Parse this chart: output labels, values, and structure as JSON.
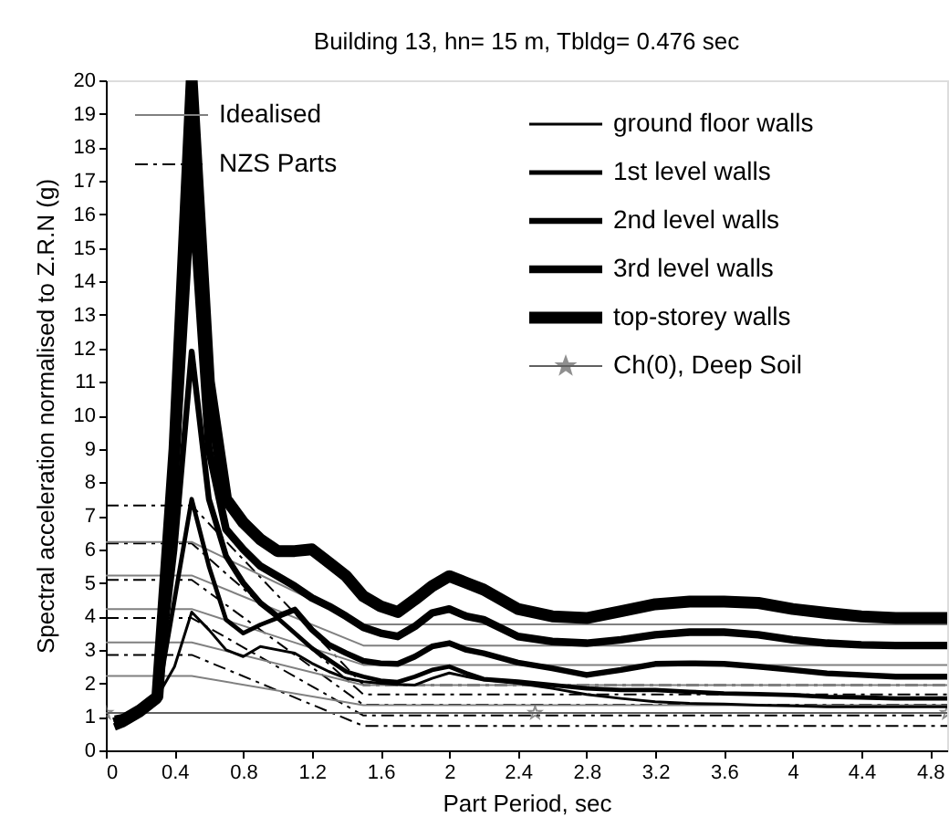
{
  "chart_data": {
    "type": "line",
    "title": "Building 13,  hn= 15 m,  Tbldg= 0.476 sec",
    "xlabel": "Part Period, sec",
    "ylabel": "Spectral acceleration normalised to Z.R.N (g)",
    "x": [
      0.05,
      0.1,
      0.2,
      0.3,
      0.4,
      0.5,
      0.6,
      0.7,
      0.8,
      0.9,
      1.0,
      1.1,
      1.2,
      1.3,
      1.4,
      1.5,
      1.6,
      1.7,
      1.8,
      1.9,
      2.0,
      2.1,
      2.2,
      2.4,
      2.6,
      2.8,
      3.0,
      3.2,
      3.4,
      3.6,
      3.8,
      4.0,
      4.2,
      4.4,
      4.6,
      4.8,
      4.9
    ],
    "xlim": [
      0,
      4.9
    ],
    "xticks": [
      0,
      0.4,
      0.8,
      1.2,
      1.6,
      2,
      2.4,
      2.8,
      3.2,
      3.6,
      4,
      4.4,
      4.8
    ],
    "ylim": [
      0,
      20
    ],
    "yticks": [
      0,
      1,
      2,
      3,
      4,
      5,
      6,
      7,
      8,
      9,
      10,
      11,
      12,
      13,
      14,
      15,
      16,
      17,
      18,
      19,
      20
    ],
    "grid": false,
    "legend": "top",
    "series": [
      {
        "name": "ground floor walls",
        "color": "#000000",
        "values": [
          1.0,
          1.05,
          1.2,
          1.6,
          2.5,
          4.13,
          3.6,
          3.0,
          2.8,
          3.1,
          3.0,
          2.9,
          2.6,
          2.35,
          2.15,
          2.05,
          2.0,
          1.97,
          1.95,
          2.15,
          2.31,
          2.2,
          2.1,
          2.0,
          1.85,
          1.67,
          1.55,
          1.45,
          1.4,
          1.38,
          1.35,
          1.33,
          1.3,
          1.3,
          1.3,
          1.3,
          1.3
        ]
      },
      {
        "name": "1st level walls",
        "color": "#000000",
        "values": [
          0.9,
          1.0,
          1.2,
          1.5,
          4.5,
          7.5,
          5.5,
          3.9,
          3.5,
          3.75,
          3.95,
          3.5,
          3.05,
          2.7,
          2.35,
          2.2,
          2.08,
          2.04,
          2.2,
          2.4,
          2.5,
          2.3,
          2.13,
          2.05,
          1.95,
          1.85,
          1.8,
          1.8,
          1.75,
          1.7,
          1.68,
          1.65,
          1.6,
          1.58,
          1.55,
          1.55,
          1.55
        ]
      },
      {
        "name": "2nd level walls",
        "color": "#000000",
        "values": [
          0.8,
          0.9,
          1.2,
          1.6,
          6,
          11.9,
          7.5,
          5.8,
          5.0,
          4.4,
          4.0,
          4.2,
          3.6,
          3.15,
          2.9,
          2.67,
          2.6,
          2.58,
          2.8,
          3.1,
          3.2,
          3.0,
          2.9,
          2.62,
          2.45,
          2.25,
          2.4,
          2.58,
          2.6,
          2.58,
          2.5,
          2.4,
          2.3,
          2.25,
          2.2,
          2.2,
          2.2
        ]
      },
      {
        "name": "3rd level walls",
        "color": "#000000",
        "values": [
          0.7,
          0.8,
          1.1,
          1.5,
          8,
          16.7,
          9,
          6.6,
          6.0,
          5.5,
          5.2,
          4.9,
          4.55,
          4.3,
          4.0,
          3.67,
          3.5,
          3.4,
          3.7,
          4.1,
          4.22,
          4.0,
          3.9,
          3.4,
          3.25,
          3.2,
          3.3,
          3.45,
          3.53,
          3.53,
          3.45,
          3.3,
          3.2,
          3.15,
          3.13,
          3.13,
          3.13
        ]
      },
      {
        "name": "top-storey walls",
        "color": "#000000",
        "values": [
          0.8,
          0.9,
          1.2,
          1.6,
          9,
          20,
          11,
          7.5,
          6.8,
          6.3,
          5.95,
          5.95,
          6.0,
          5.6,
          5.2,
          4.6,
          4.3,
          4.13,
          4.5,
          4.9,
          5.2,
          5.0,
          4.8,
          4.22,
          4.0,
          3.95,
          4.15,
          4.36,
          4.44,
          4.44,
          4.4,
          4.22,
          4.1,
          4.0,
          3.95,
          3.95,
          3.95
        ]
      },
      {
        "name": "Ch(0), Deep Soil",
        "color": "#606060",
        "marker": "star",
        "x": [
          0,
          2.5,
          4.9
        ],
        "values": [
          1.12,
          1.12,
          1.12
        ]
      },
      {
        "name": "Idealised",
        "color": "#808080",
        "x": [
          0,
          0.5,
          1.5,
          4.9
        ],
        "values": [
          2.22,
          2.22,
          1.35,
          1.35
        ]
      },
      {
        "color": "#808080",
        "x": [
          0,
          0.5,
          1.5,
          4.9
        ],
        "values": [
          3.22,
          3.22,
          1.95,
          1.95
        ]
      },
      {
        "color": "#808080",
        "x": [
          0,
          0.5,
          1.5,
          4.9
        ],
        "values": [
          4.22,
          4.22,
          2.55,
          2.55
        ]
      },
      {
        "color": "#808080",
        "x": [
          0,
          0.5,
          1.5,
          4.9
        ],
        "values": [
          5.22,
          5.22,
          3.13,
          3.13
        ]
      },
      {
        "color": "#808080",
        "x": [
          0,
          0.5,
          1.5,
          4.9
        ],
        "values": [
          6.22,
          6.22,
          3.76,
          3.76
        ]
      },
      {
        "name": "NZS Parts",
        "color": "#000000",
        "line_style": "dashed",
        "x": [
          0,
          0.5,
          1.5,
          4.9
        ],
        "values": [
          2.85,
          2.85,
          0.73,
          0.73
        ]
      },
      {
        "color": "#000000",
        "line_style": "dashed",
        "x": [
          0,
          0.5,
          1.5,
          4.9
        ],
        "values": [
          3.95,
          3.95,
          1.04,
          1.04
        ]
      },
      {
        "color": "#000000",
        "line_style": "dashed",
        "x": [
          0,
          0.5,
          1.5,
          4.9
        ],
        "values": [
          5.09,
          5.09,
          1.36,
          1.36
        ]
      },
      {
        "color": "#000000",
        "line_style": "dashed",
        "x": [
          0,
          0.5,
          1.5,
          4.9
        ],
        "values": [
          6.18,
          6.18,
          1.67,
          1.67
        ]
      },
      {
        "color": "#000000",
        "line_style": "dashed",
        "x": [
          0,
          0.5,
          1.5,
          4.9
        ],
        "values": [
          7.31,
          7.31,
          1.95,
          1.95
        ]
      }
    ]
  }
}
